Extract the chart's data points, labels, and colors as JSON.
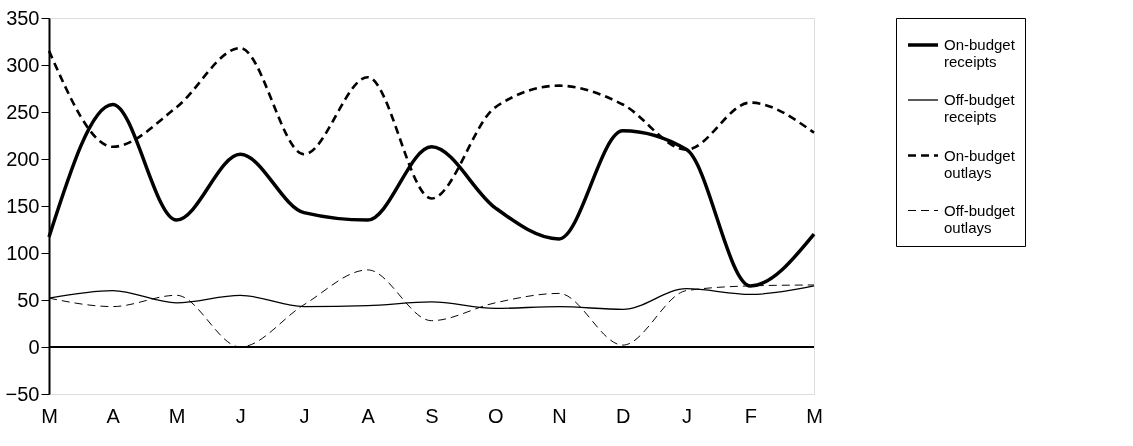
{
  "chart_data": {
    "type": "line",
    "categories": [
      "M",
      "A",
      "M",
      "J",
      "J",
      "A",
      "S",
      "O",
      "N",
      "D",
      "J",
      "F",
      "M"
    ],
    "series": [
      {
        "name": "On-budget receipts",
        "color": "#000000",
        "line_style": "solid",
        "values": [
          117,
          258,
          135,
          205,
          143,
          135,
          213,
          148,
          115,
          230,
          210,
          65,
          120
        ]
      },
      {
        "name": "Off-budget receipts",
        "color": "#000000",
        "line_style": "solid",
        "values": [
          52,
          60,
          47,
          55,
          43,
          44,
          48,
          41,
          43,
          40,
          62,
          56,
          65
        ]
      },
      {
        "name": "On-budget outlays",
        "color": "#000000",
        "line_style": "dashed",
        "values": [
          315,
          213,
          255,
          318,
          205,
          287,
          158,
          255,
          278,
          258,
          210,
          260,
          228
        ]
      },
      {
        "name": "Off-budget outlays",
        "color": "#000000",
        "line_style": "dashed",
        "values": [
          52,
          43,
          55,
          0,
          45,
          82,
          28,
          47,
          57,
          2,
          60,
          65,
          66
        ]
      }
    ],
    "ylim": [
      -50,
      350
    ],
    "yticks": [
      -50,
      0,
      50,
      100,
      150,
      200,
      250,
      300,
      350
    ],
    "ref_lines": [
      {
        "axis": "y",
        "value": 0,
        "color": "#000000"
      }
    ],
    "grid": false,
    "legend": "right",
    "marker": "none"
  }
}
